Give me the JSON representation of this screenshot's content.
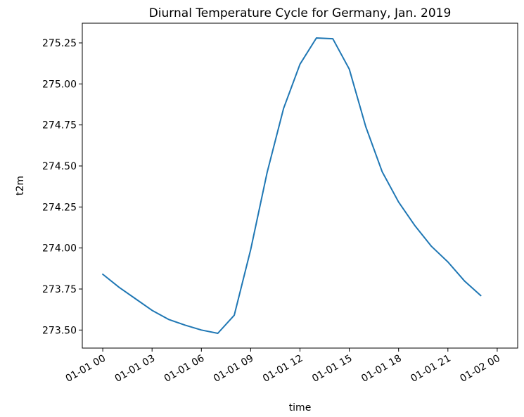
{
  "chart_data": {
    "type": "line",
    "title": "Diurnal Temperature Cycle for Germany, Jan. 2019",
    "xlabel": "time",
    "ylabel": "t2m",
    "xlim": [
      "2019-01-01 00:00",
      "2019-01-02 00:00"
    ],
    "ylim": [
      273.39,
      275.37
    ],
    "grid": false,
    "legend": "none",
    "colors": {
      "line": "#1f77b4",
      "axes": "#000000",
      "background": "#ffffff"
    },
    "x_ticks": [
      {
        "label": "01-01 00",
        "time": "2019-01-01 00:00"
      },
      {
        "label": "01-01 03",
        "time": "2019-01-01 03:00"
      },
      {
        "label": "01-01 06",
        "time": "2019-01-01 06:00"
      },
      {
        "label": "01-01 09",
        "time": "2019-01-01 09:00"
      },
      {
        "label": "01-01 12",
        "time": "2019-01-01 12:00"
      },
      {
        "label": "01-01 15",
        "time": "2019-01-01 15:00"
      },
      {
        "label": "01-01 18",
        "time": "2019-01-01 18:00"
      },
      {
        "label": "01-01 21",
        "time": "2019-01-01 21:00"
      },
      {
        "label": "01-02 00",
        "time": "2019-01-02 00:00"
      }
    ],
    "y_ticks": [
      {
        "label": "273.50",
        "value": 273.5
      },
      {
        "label": "273.75",
        "value": 273.75
      },
      {
        "label": "274.00",
        "value": 274.0
      },
      {
        "label": "274.25",
        "value": 274.25
      },
      {
        "label": "274.50",
        "value": 274.5
      },
      {
        "label": "274.75",
        "value": 274.75
      },
      {
        "label": "275.00",
        "value": 275.0
      },
      {
        "label": "275.25",
        "value": 275.25
      }
    ],
    "series": [
      {
        "x": [
          "2019-01-01 00:00",
          "2019-01-01 01:00",
          "2019-01-01 02:00",
          "2019-01-01 03:00",
          "2019-01-01 04:00",
          "2019-01-01 05:00",
          "2019-01-01 06:00",
          "2019-01-01 07:00",
          "2019-01-01 08:00",
          "2019-01-01 09:00",
          "2019-01-01 10:00",
          "2019-01-01 11:00",
          "2019-01-01 12:00",
          "2019-01-01 13:00",
          "2019-01-01 14:00",
          "2019-01-01 15:00",
          "2019-01-01 16:00",
          "2019-01-01 17:00",
          "2019-01-01 18:00",
          "2019-01-01 19:00",
          "2019-01-01 20:00",
          "2019-01-01 21:00",
          "2019-01-01 22:00",
          "2019-01-01 23:00"
        ],
        "values": [
          273.84,
          273.76,
          273.69,
          273.62,
          273.565,
          273.53,
          273.5,
          273.48,
          273.59,
          273.99,
          274.46,
          274.85,
          275.12,
          275.28,
          275.275,
          275.09,
          274.74,
          274.465,
          274.28,
          274.135,
          274.01,
          273.915,
          273.8,
          273.71
        ]
      }
    ]
  }
}
